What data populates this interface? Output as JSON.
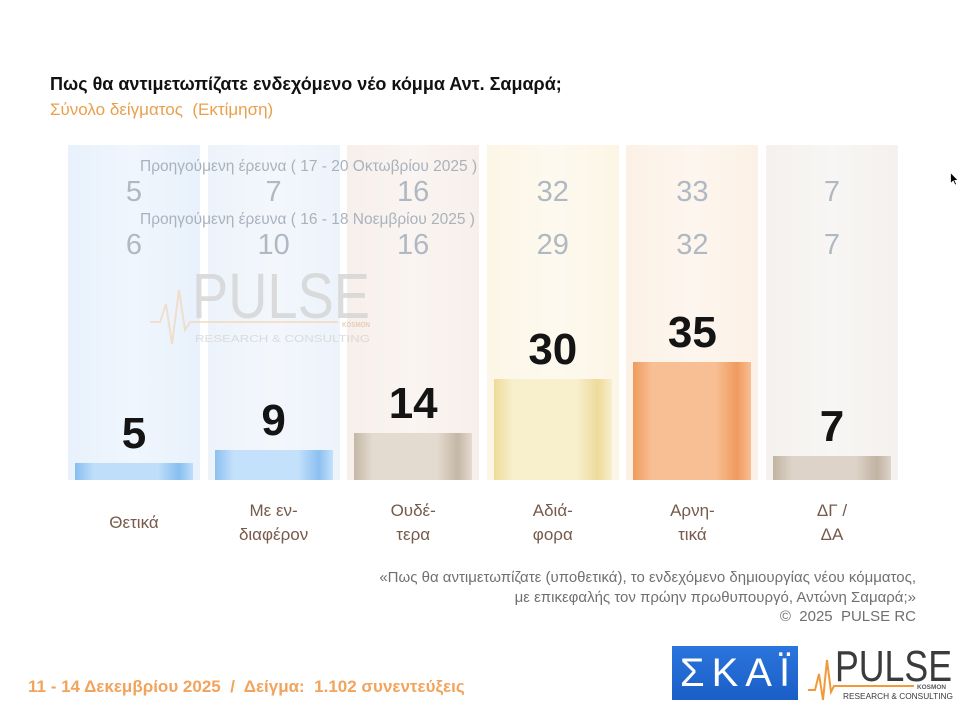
{
  "chart_data": {
    "type": "bar",
    "title": "Πως θα αντιμετωπίζατε ενδεχόμενο νέο κόμμα Αντ. Σαμαρά;",
    "subtitle": "Σύνολο δείγματος  (Εκτίμηση)",
    "categories": [
      "Θετικά",
      "Με εν-\nδιαφέρον",
      "Ουδέ-\nτερα",
      "Αδιά-\nφορα",
      "Αρνη-\nτικά",
      "ΔΓ /\nΔΑ"
    ],
    "series": [
      {
        "values": [
          5,
          9,
          14,
          30,
          35,
          7
        ]
      },
      {
        "name": "Προηγούμενη έρευνα ( 17 - 20 Οκτωβρίου 2025 )",
        "values": [
          5,
          7,
          16,
          32,
          33,
          7
        ]
      },
      {
        "name": "Προηγούμενη έρευνα ( 16 - 18 Νοεμβρίου 2025 )",
        "values": [
          6,
          10,
          16,
          29,
          32,
          7
        ]
      }
    ],
    "grid": false
  },
  "footnote": {
    "lines": [
      "«Πως θα αντιμετωπίζατε (υποθετικά), το ενδεχόμενο δημιουργίας νέου κόμματος,",
      "με επικεφαλής τον πρώην πρωθυπουργό, Αντώνη Σαμαρά;»"
    ],
    "copyright": "©  2025  PULSE RC"
  },
  "fieldwork": "11 - 14 Δεκεμβρίου 2025  /  Δείγμα:  1.102 συνεντεύξεις",
  "logos": {
    "skai": "ΣΚΑΪ",
    "pulse": {
      "name": "PULSE",
      "tag": "KOSMON",
      "tagline": "RESEARCH & CONSULTING"
    }
  },
  "watermark": {
    "name": "PULSE",
    "tag": "KOSMON",
    "tagline": "RESEARCH & CONSULTING"
  },
  "icons": {
    "cursor": "mouse-cursor-icon",
    "pulse": "pulse-line-icon"
  },
  "colors": {
    "accent": "#e9a04e",
    "skai_blue": "#1f66d1",
    "pulse_orange": "#f29a3a",
    "bars": [
      {
        "edge": "#88bef0",
        "center": "#bfdefa"
      },
      {
        "edge": "#8cc0f1",
        "center": "#c4e1fb"
      },
      {
        "edge": "#c4b7a6",
        "center": "#e4dbd0"
      },
      {
        "edge": "#eedb9a",
        "center": "#f8efcd"
      },
      {
        "edge": "#f09a5e",
        "center": "#f8bf94"
      },
      {
        "edge": "#c2b3a2",
        "center": "#ddd3c8"
      }
    ],
    "columns": [
      "#e8f1fc",
      "#edf3fb",
      "#f7efeb",
      "#fcf6e6",
      "#fcf1e6",
      "#f4f1ee"
    ]
  }
}
